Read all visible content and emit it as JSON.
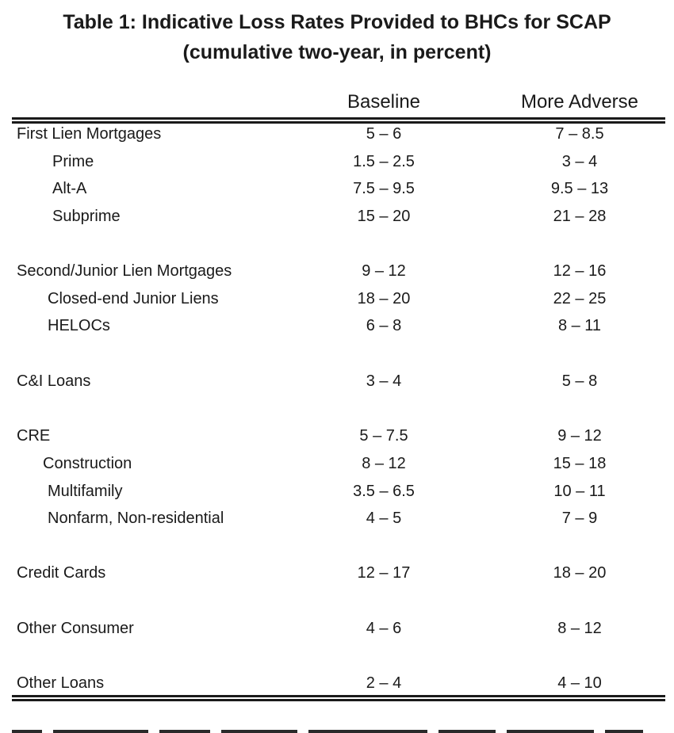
{
  "table": {
    "title_line1": "Table 1: Indicative Loss Rates Provided to BHCs for SCAP",
    "title_line2": "(cumulative two-year, in percent)",
    "columns": [
      "Baseline",
      "More Adverse"
    ],
    "rows": [
      {
        "label": "First Lien Mortgages",
        "baseline": "5 – 6",
        "more_adverse": "7 – 8.5"
      },
      {
        "label": "Prime",
        "baseline": "1.5 – 2.5",
        "more_adverse": "3 – 4"
      },
      {
        "label": "Alt-A",
        "baseline": "7.5 – 9.5",
        "more_adverse": "9.5 – 13"
      },
      {
        "label": "Subprime",
        "baseline": "15 – 20",
        "more_adverse": "21 – 28"
      },
      {
        "label": "Second/Junior Lien Mortgages",
        "baseline": "9 – 12",
        "more_adverse": "12 – 16"
      },
      {
        "label": "Closed-end Junior Liens",
        "baseline": "18 – 20",
        "more_adverse": "22 – 25"
      },
      {
        "label": "HELOCs",
        "baseline": "6 – 8",
        "more_adverse": "8 – 11"
      },
      {
        "label": "C&I Loans",
        "baseline": "3 – 4",
        "more_adverse": "5 – 8"
      },
      {
        "label": "CRE",
        "baseline": "5 – 7.5",
        "more_adverse": "9 – 12"
      },
      {
        "label": "Construction",
        "baseline": "8 – 12",
        "more_adverse": "15 – 18"
      },
      {
        "label": "Multifamily",
        "baseline": "3.5 – 6.5",
        "more_adverse": "10 – 11"
      },
      {
        "label": "Nonfarm, Non-residential",
        "baseline": "4 – 5",
        "more_adverse": "7 – 9"
      },
      {
        "label": "Credit Cards",
        "baseline": "12 – 17",
        "more_adverse": "18 – 20"
      },
      {
        "label": "Other Consumer",
        "baseline": "4 – 6",
        "more_adverse": "8 – 12"
      },
      {
        "label": "Other Loans",
        "baseline": "2 – 4",
        "more_adverse": "4 – 10"
      }
    ]
  }
}
